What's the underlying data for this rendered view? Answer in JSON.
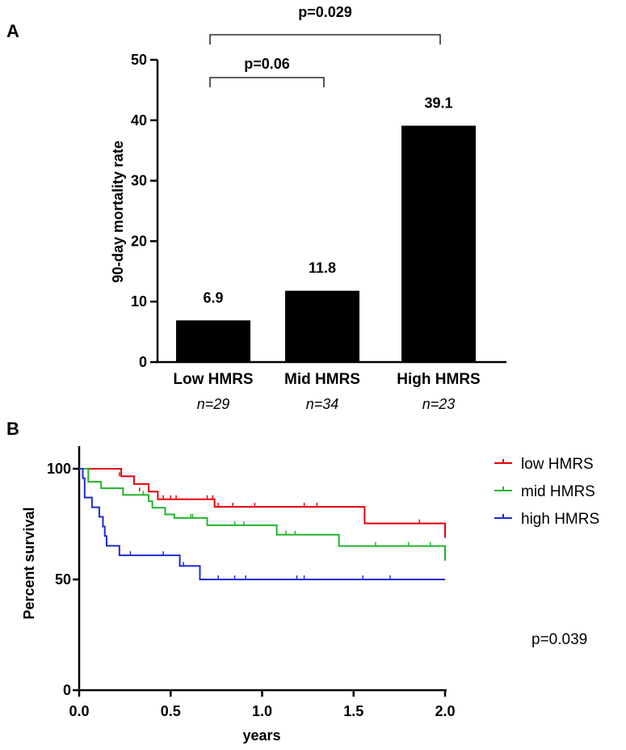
{
  "panels": {
    "a": {
      "label": "A"
    },
    "b": {
      "label": "B"
    }
  },
  "chart_data": [
    {
      "type": "bar",
      "panel": "A",
      "categories": [
        "Low HMRS",
        "Mid HMRS",
        "High HMRS"
      ],
      "n_labels": [
        "n=29",
        "n=34",
        "n=23"
      ],
      "values": [
        6.9,
        11.8,
        39.1
      ],
      "value_labels": [
        "6.9",
        "11.8",
        "39.1"
      ],
      "ylabel": "90-day mortality rate",
      "xlabel": "",
      "ylim": [
        0,
        50
      ],
      "yticks": [
        0,
        10,
        20,
        30,
        40,
        50
      ],
      "ytick_labels": [
        "0",
        "10",
        "20",
        "30",
        "40",
        "50"
      ],
      "color": "#000000",
      "comparisons": [
        {
          "from": 0,
          "to": 2,
          "label": "p=0.029"
        },
        {
          "from": 0,
          "to": 1,
          "label": "p=0.06"
        }
      ]
    },
    {
      "type": "line",
      "subtype": "kaplan-meier",
      "panel": "B",
      "xlabel": "years",
      "ylabel": "Percent survival",
      "xlim": [
        0,
        2
      ],
      "ylim": [
        0,
        100
      ],
      "xticks": [
        0,
        0.5,
        1,
        1.5,
        2
      ],
      "xtick_labels": [
        "0.0",
        "0.5",
        "1.0",
        "1.5",
        "2.0"
      ],
      "yticks": [
        0,
        50,
        100
      ],
      "ytick_labels": [
        "0",
        "50",
        "100"
      ],
      "legend_position": "top-right",
      "annotation": "p=0.039",
      "series": [
        {
          "name": "low HMRS",
          "color": "#e8000b",
          "steps": [
            [
              0,
              100
            ],
            [
              0.23,
              96.6
            ],
            [
              0.3,
              93.1
            ],
            [
              0.38,
              89.7
            ],
            [
              0.43,
              86.2
            ],
            [
              0.74,
              82.8
            ],
            [
              1.56,
              75.3
            ],
            [
              2.0,
              68.8
            ]
          ],
          "censored": [
            [
              0.22,
              96.6
            ],
            [
              0.33,
              89.7
            ],
            [
              0.46,
              86.2
            ],
            [
              0.5,
              86.2
            ],
            [
              0.53,
              86.2
            ],
            [
              0.7,
              86.2
            ],
            [
              0.73,
              86.2
            ],
            [
              0.76,
              82.8
            ],
            [
              0.84,
              82.8
            ],
            [
              0.96,
              82.8
            ],
            [
              1.23,
              82.8
            ],
            [
              1.3,
              82.8
            ],
            [
              1.86,
              75.3
            ]
          ]
        },
        {
          "name": "mid HMRS",
          "color": "#1fb42a",
          "steps": [
            [
              0,
              100
            ],
            [
              0.05,
              94.1
            ],
            [
              0.12,
              91.2
            ],
            [
              0.24,
              88.2
            ],
            [
              0.38,
              85.3
            ],
            [
              0.4,
              82.4
            ],
            [
              0.47,
              79.4
            ],
            [
              0.52,
              77.8
            ],
            [
              0.7,
              74.5
            ],
            [
              1.08,
              70.2
            ],
            [
              1.42,
              65.1
            ],
            [
              2.0,
              58.5
            ]
          ],
          "censored": [
            [
              0.35,
              88.2
            ],
            [
              0.61,
              77.8
            ],
            [
              0.62,
              77.8
            ],
            [
              0.85,
              74.5
            ],
            [
              0.9,
              74.5
            ],
            [
              1.13,
              70.2
            ],
            [
              1.18,
              70.2
            ],
            [
              1.62,
              65.1
            ],
            [
              1.8,
              65.1
            ],
            [
              1.92,
              65.1
            ]
          ]
        },
        {
          "name": "high HMRS",
          "color": "#1f2bd2",
          "steps": [
            [
              0,
              100
            ],
            [
              0.02,
              95.7
            ],
            [
              0.03,
              87
            ],
            [
              0.07,
              82.6
            ],
            [
              0.11,
              78.3
            ],
            [
              0.13,
              73.9
            ],
            [
              0.14,
              69.6
            ],
            [
              0.15,
              65.2
            ],
            [
              0.22,
              60.9
            ],
            [
              0.55,
              56.1
            ],
            [
              0.66,
              50
            ],
            [
              2.0,
              50
            ]
          ],
          "censored": [
            [
              0.28,
              60.9
            ],
            [
              0.46,
              60.9
            ],
            [
              0.57,
              56.1
            ],
            [
              0.76,
              50
            ],
            [
              0.85,
              50
            ],
            [
              0.91,
              50
            ],
            [
              1.19,
              50
            ],
            [
              1.23,
              50
            ],
            [
              1.55,
              50
            ],
            [
              1.7,
              50
            ]
          ]
        }
      ]
    }
  ]
}
